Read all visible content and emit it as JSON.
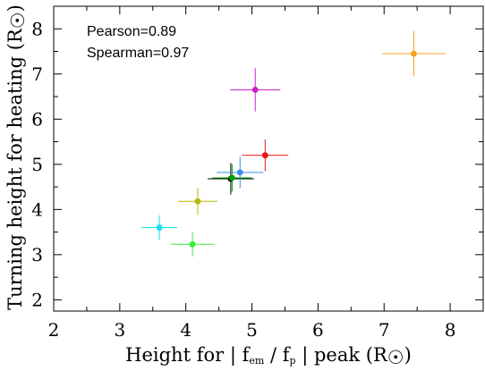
{
  "chart_data": {
    "type": "scatter",
    "title": "",
    "xlabel_parts": {
      "prefix": "Height for | f",
      "sub1": "em",
      "middle": " / f",
      "sub2": "p",
      "suffix": " | peak (R",
      "sun": "☉",
      "close": ")"
    },
    "ylabel_parts": {
      "prefix": "Turning height for heating (R",
      "sun": "☉",
      "close": ")"
    },
    "xlim": [
      2,
      8.5
    ],
    "ylim": [
      1.75,
      8.5
    ],
    "xticks": [
      "2",
      "3",
      "4",
      "5",
      "6",
      "7",
      "8"
    ],
    "yticks": [
      "2",
      "3",
      "4",
      "5",
      "6",
      "7",
      "8"
    ],
    "grid": false,
    "annotations": [
      "Pearson=0.89",
      "Spearman=0.97"
    ],
    "points": [
      {
        "x": 3.6,
        "y": 3.6,
        "xerr": 0.27,
        "yerr": 0.27,
        "color": "#00e5ee"
      },
      {
        "x": 4.1,
        "y": 3.23,
        "xerr": 0.33,
        "yerr": 0.27,
        "color": "#33ee33"
      },
      {
        "x": 4.18,
        "y": 4.18,
        "xerr": 0.3,
        "yerr": 0.3,
        "color": "#b8b800"
      },
      {
        "x": 4.68,
        "y": 4.68,
        "xerr": 0.35,
        "yerr": 0.35,
        "color": "#000000"
      },
      {
        "x": 4.7,
        "y": 4.7,
        "xerr": 0.3,
        "yerr": 0.3,
        "color": "#00a000"
      },
      {
        "x": 4.82,
        "y": 4.82,
        "xerr": 0.35,
        "yerr": 0.35,
        "color": "#3a8ee6"
      },
      {
        "x": 5.2,
        "y": 5.2,
        "xerr": 0.35,
        "yerr": 0.35,
        "color": "#ee1111"
      },
      {
        "x": 5.05,
        "y": 6.65,
        "xerr": 0.38,
        "yerr": 0.48,
        "color": "#cc22cc"
      },
      {
        "x": 7.45,
        "y": 7.45,
        "xerr": 0.48,
        "yerr": 0.5,
        "color": "#f5a020"
      }
    ]
  }
}
